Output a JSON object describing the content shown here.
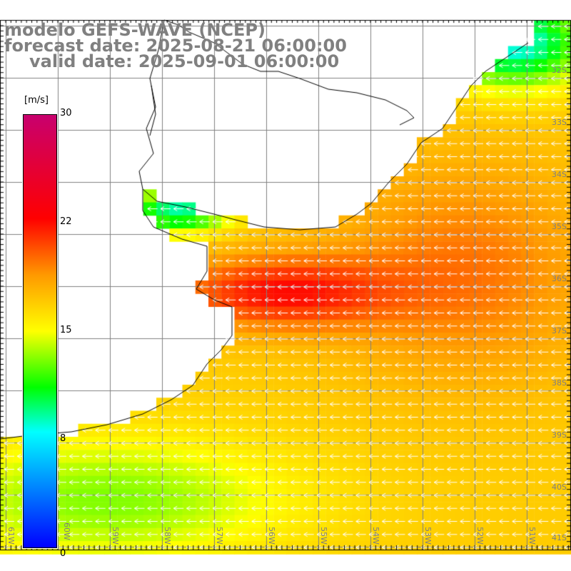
{
  "title": {
    "model": "modelo GEFS-WAVE (NCEP)",
    "forecast": "forecast date: 2025-08-21 06:00:00",
    "valid": "valid date: 2025-09-01 06:00:00"
  },
  "colorbar": {
    "unit": "[m/s]",
    "labels": [
      "30",
      "22",
      "15",
      "8",
      "0"
    ],
    "colors": [
      "#0000ff",
      "#00ffff",
      "#00ff00",
      "#ffff00",
      "#ff9900",
      "#ff0000",
      "#c8006e"
    ]
  },
  "axes": {
    "lat_labels": [
      "32S",
      "33S",
      "34S",
      "35S",
      "36S",
      "37S",
      "38S",
      "39S",
      "40S",
      "41S"
    ],
    "lon_labels": [
      "61W",
      "60W",
      "59W",
      "58W",
      "57W",
      "56W",
      "55W",
      "54W",
      "53W",
      "52W",
      "51W"
    ]
  }
}
